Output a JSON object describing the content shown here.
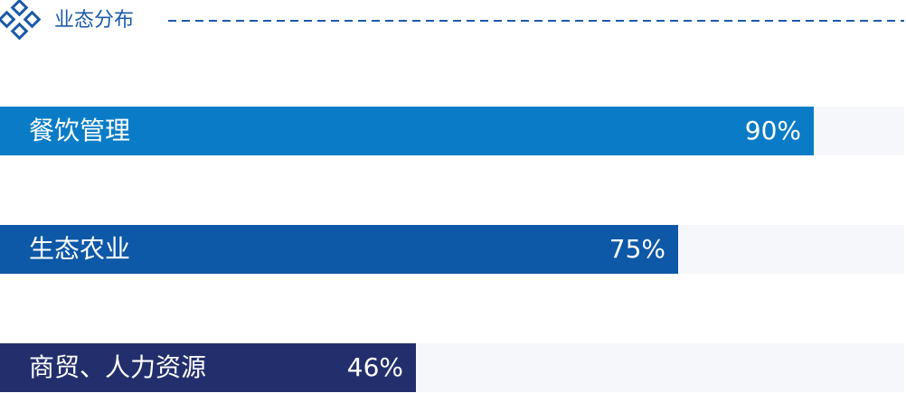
{
  "chart_data": {
    "type": "bar",
    "orientation": "horizontal",
    "title": "业态分布",
    "categories": [
      "餐饮管理",
      "生态农业",
      "商贸、人力资源"
    ],
    "values": [
      90,
      75,
      46
    ],
    "value_labels": [
      "90%",
      "75%",
      "46%"
    ],
    "colors": [
      "#0a7cc7",
      "#0d58a7",
      "#232f6d"
    ],
    "xlim": [
      0,
      100
    ]
  }
}
